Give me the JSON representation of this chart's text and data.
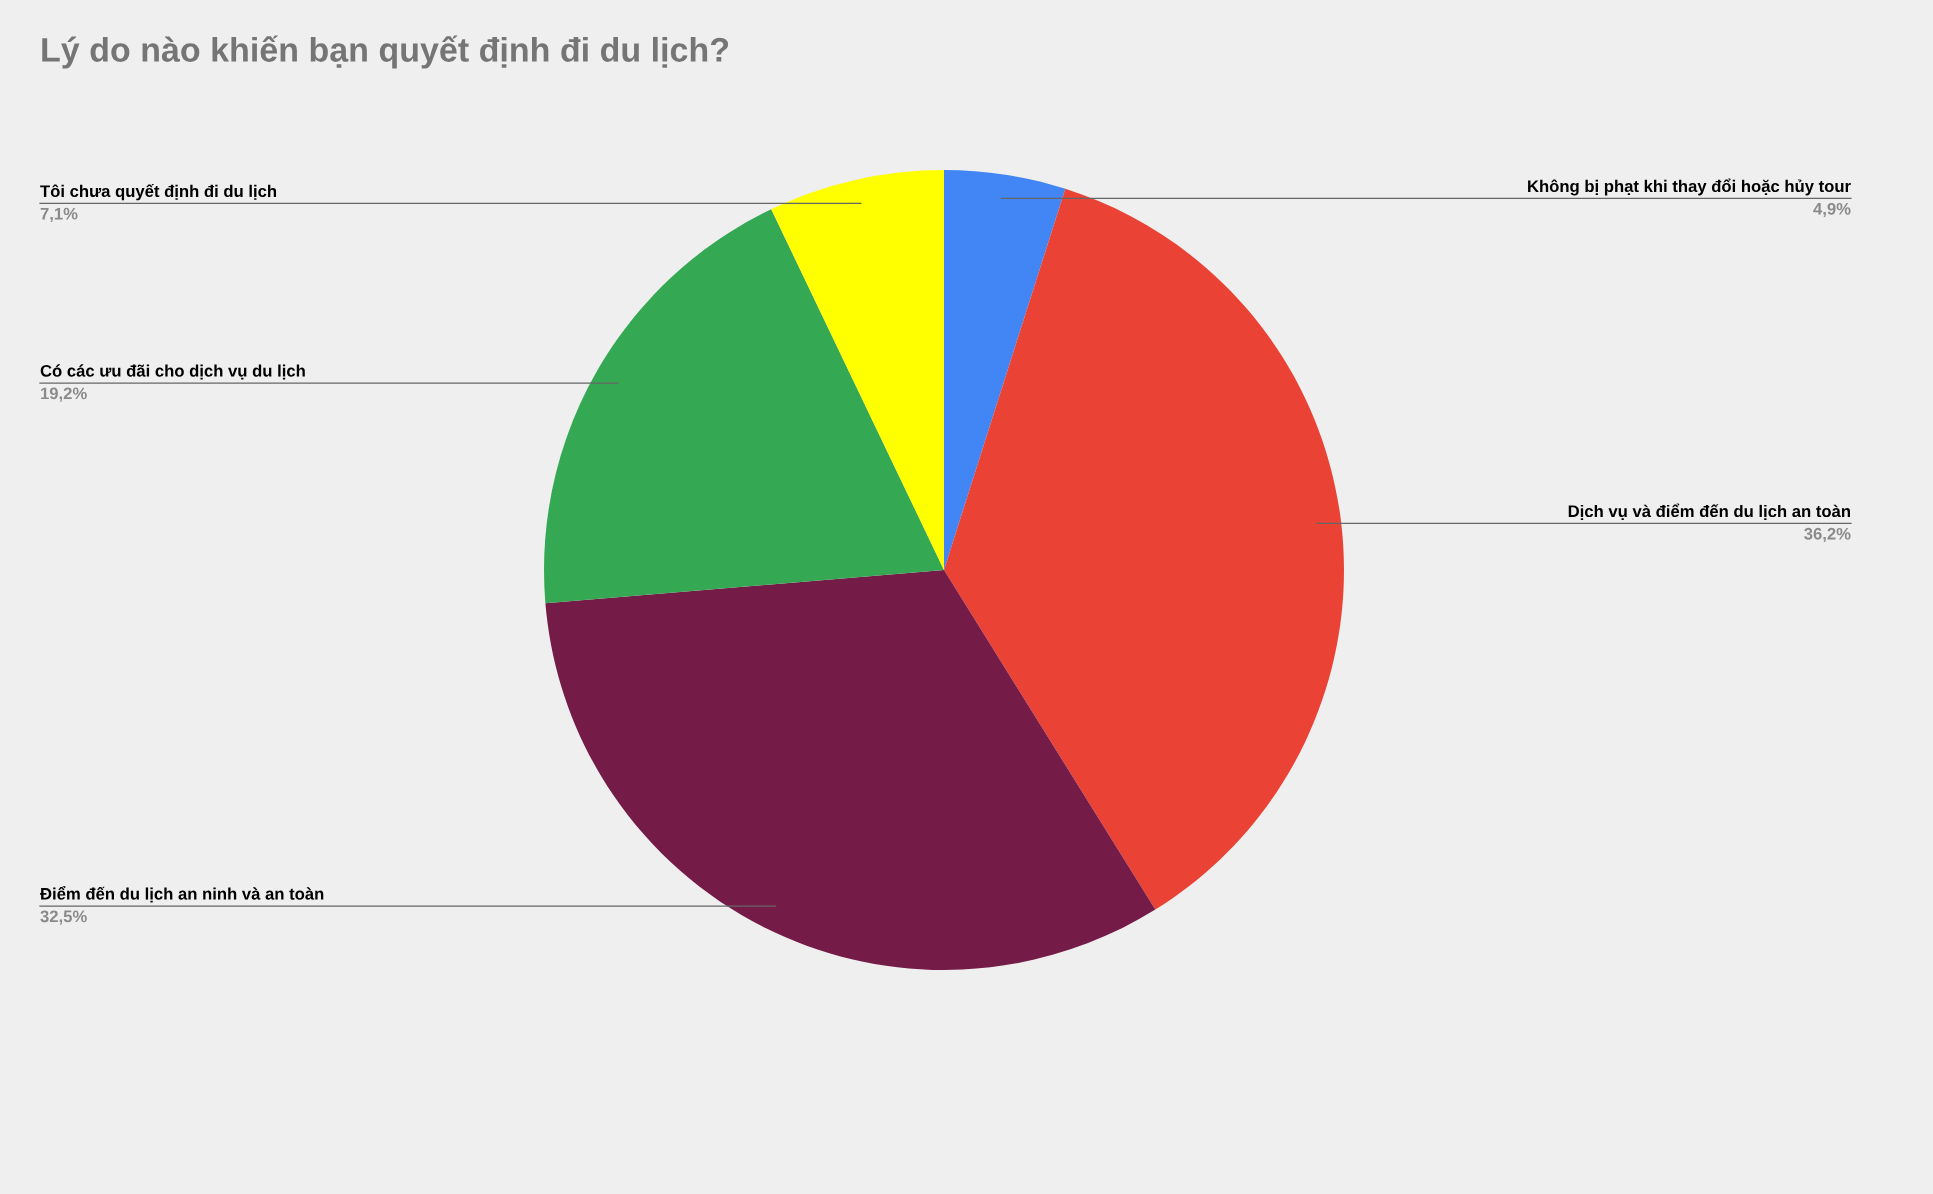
{
  "chart_data": {
    "type": "pie",
    "title": "Lý do nào khiến bạn quyết định đi du lịch?",
    "categories": [
      "Không bị phạt khi thay đổi hoặc hủy tour",
      "Dịch vụ và điểm đến du lịch an toàn",
      "Điểm đến du lịch an ninh và an toàn",
      "Có các ưu đãi cho dịch vụ du lịch",
      "Tôi chưa quyết định đi du lịch"
    ],
    "values": [
      4.9,
      36.2,
      32.5,
      19.2,
      7.1
    ],
    "colors": [
      "#4285f4",
      "#ea4335",
      "#741b47",
      "#34a853",
      "#ffff00"
    ],
    "value_labels": [
      "4,9%",
      "36,2%",
      "32,5%",
      "19,2%",
      "7,1%"
    ]
  }
}
